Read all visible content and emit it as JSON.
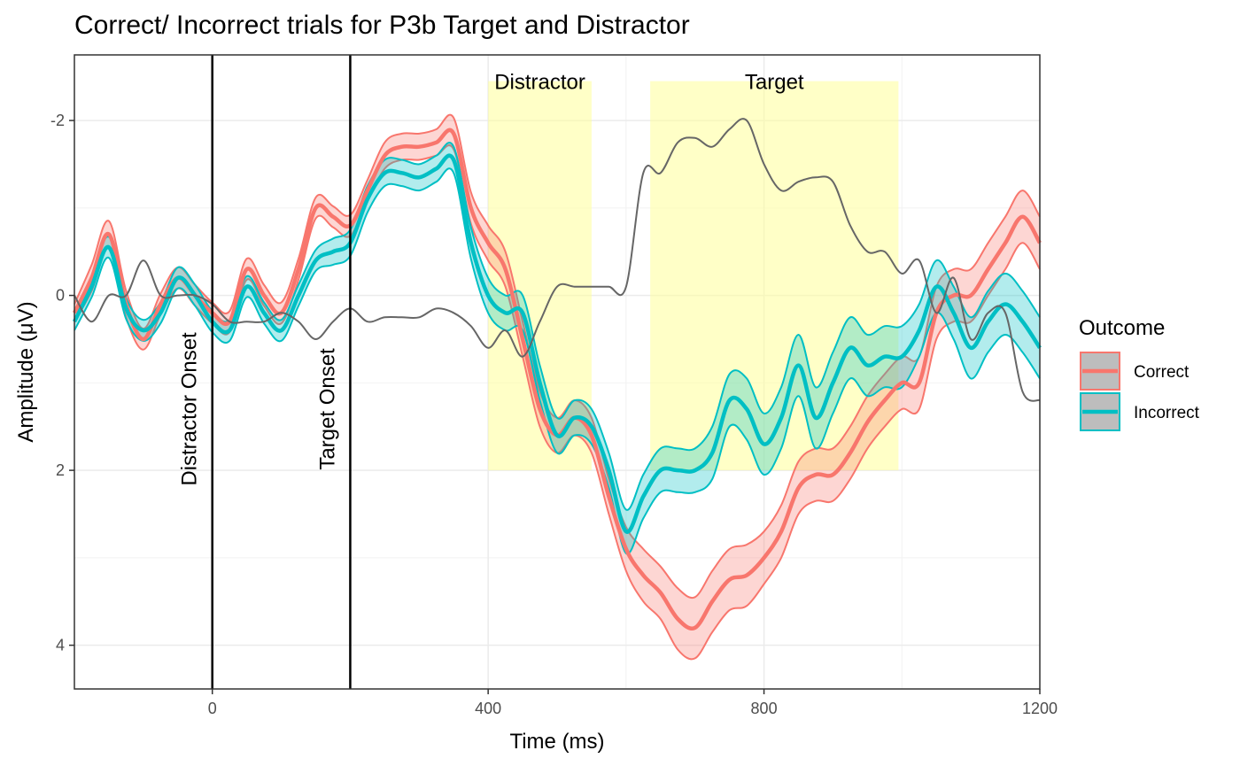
{
  "chart_data": {
    "type": "line",
    "title": "Correct/ Incorrect trials for P3b Target and Distractor",
    "xlabel": "Time (ms)",
    "ylabel": "Amplitude (μV)",
    "xlim": [
      -200,
      1200
    ],
    "ylim": [
      -2.75,
      4.5
    ],
    "y_reversed": true,
    "x_ticks": [
      0,
      400,
      800,
      1200
    ],
    "x_tick_labels": [
      "0",
      "400",
      "800",
      "1200"
    ],
    "y_ticks": [
      -2,
      0,
      2,
      4
    ],
    "y_tick_labels": [
      "-2",
      "0",
      "2",
      "4"
    ],
    "grid": true,
    "legend": {
      "title": "Outcome",
      "position": "right",
      "entries": [
        {
          "name": "Correct",
          "color": "#F8766D"
        },
        {
          "name": "Incorrect",
          "color": "#00BFC4"
        }
      ]
    },
    "vlines": [
      {
        "x": 0,
        "label": "Distractor Onset"
      },
      {
        "x": 200,
        "label": "Target Onset"
      }
    ],
    "windows": [
      {
        "label": "Distractor",
        "x": [
          400,
          550
        ],
        "y": [
          -2.45,
          2.0
        ],
        "color": "#ffff99"
      },
      {
        "label": "Target",
        "x": [
          635,
          995
        ],
        "y": [
          -2.45,
          2.0
        ],
        "color": "#ffff99"
      }
    ],
    "x": [
      -200,
      -175,
      -150,
      -125,
      -100,
      -75,
      -50,
      -25,
      0,
      25,
      50,
      75,
      100,
      125,
      150,
      175,
      200,
      225,
      250,
      275,
      300,
      325,
      350,
      375,
      400,
      425,
      450,
      475,
      500,
      525,
      550,
      575,
      600,
      625,
      650,
      675,
      700,
      725,
      750,
      775,
      800,
      825,
      850,
      875,
      900,
      925,
      950,
      975,
      1000,
      1025,
      1050,
      1075,
      1100,
      1125,
      1150,
      1175,
      1200
    ],
    "series": [
      {
        "name": "Correct",
        "color": "#F8766D",
        "values": [
          0.2,
          -0.2,
          -0.7,
          0.1,
          0.5,
          0.1,
          -0.2,
          0.0,
          0.2,
          0.3,
          -0.3,
          0.0,
          0.2,
          -0.3,
          -1.0,
          -0.9,
          -0.8,
          -1.2,
          -1.6,
          -1.7,
          -1.7,
          -1.75,
          -1.85,
          -1.0,
          -0.6,
          -0.3,
          0.5,
          1.3,
          1.6,
          1.4,
          1.6,
          2.3,
          2.9,
          3.2,
          3.4,
          3.7,
          3.8,
          3.5,
          3.25,
          3.2,
          3.0,
          2.7,
          2.2,
          2.05,
          2.05,
          1.8,
          1.45,
          1.2,
          1.0,
          1.0,
          0.2,
          0.0,
          0.0,
          -0.3,
          -0.6,
          -0.9,
          -0.6
        ],
        "se": [
          0.1,
          0.15,
          0.15,
          0.15,
          0.12,
          0.12,
          0.12,
          0.12,
          0.12,
          0.12,
          0.12,
          0.12,
          0.12,
          0.12,
          0.12,
          0.12,
          0.12,
          0.12,
          0.15,
          0.15,
          0.15,
          0.15,
          0.18,
          0.18,
          0.2,
          0.2,
          0.2,
          0.2,
          0.2,
          0.2,
          0.2,
          0.2,
          0.25,
          0.3,
          0.3,
          0.35,
          0.35,
          0.35,
          0.35,
          0.35,
          0.3,
          0.3,
          0.3,
          0.3,
          0.3,
          0.3,
          0.3,
          0.3,
          0.3,
          0.3,
          0.3,
          0.3,
          0.3,
          0.3,
          0.3,
          0.3,
          0.3
        ]
      },
      {
        "name": "Incorrect",
        "color": "#00BFC4",
        "values": [
          0.3,
          -0.1,
          -0.55,
          0.15,
          0.4,
          0.2,
          -0.2,
          0.0,
          0.3,
          0.4,
          -0.1,
          0.2,
          0.4,
          0.0,
          -0.4,
          -0.5,
          -0.6,
          -1.1,
          -1.4,
          -1.4,
          -1.35,
          -1.45,
          -1.55,
          -0.6,
          0.0,
          0.2,
          0.2,
          1.0,
          1.6,
          1.4,
          1.5,
          2.0,
          2.7,
          2.3,
          2.0,
          2.0,
          2.0,
          1.8,
          1.2,
          1.3,
          1.7,
          1.4,
          0.8,
          1.4,
          1.0,
          0.6,
          0.8,
          0.7,
          0.7,
          0.4,
          -0.1,
          0.2,
          0.6,
          0.3,
          0.1,
          0.3,
          0.6
        ],
        "se": [
          0.1,
          0.12,
          0.12,
          0.12,
          0.12,
          0.12,
          0.12,
          0.12,
          0.12,
          0.12,
          0.12,
          0.12,
          0.12,
          0.12,
          0.12,
          0.15,
          0.15,
          0.15,
          0.15,
          0.15,
          0.15,
          0.15,
          0.15,
          0.18,
          0.2,
          0.2,
          0.2,
          0.2,
          0.2,
          0.2,
          0.2,
          0.2,
          0.25,
          0.25,
          0.25,
          0.25,
          0.25,
          0.3,
          0.3,
          0.35,
          0.35,
          0.35,
          0.35,
          0.35,
          0.35,
          0.35,
          0.35,
          0.35,
          0.35,
          0.3,
          0.3,
          0.3,
          0.35,
          0.35,
          0.35,
          0.35,
          0.35
        ]
      },
      {
        "name": "Difference",
        "color": "#666666",
        "values": [
          0.0,
          0.3,
          0.0,
          0.0,
          -0.4,
          0.0,
          0.0,
          0.0,
          0.1,
          0.3,
          0.3,
          0.3,
          0.2,
          0.3,
          0.5,
          0.3,
          0.15,
          0.3,
          0.25,
          0.25,
          0.25,
          0.15,
          0.2,
          0.35,
          0.6,
          0.4,
          0.7,
          0.3,
          -0.1,
          -0.1,
          -0.1,
          -0.1,
          -0.1,
          -1.4,
          -1.4,
          -1.75,
          -1.8,
          -1.7,
          -1.9,
          -2.0,
          -1.5,
          -1.2,
          -1.3,
          -1.35,
          -1.3,
          -0.8,
          -0.5,
          -0.5,
          -0.25,
          -0.4,
          0.2,
          -0.2,
          0.5,
          0.2,
          0.2,
          1.1,
          1.2
        ]
      }
    ]
  }
}
